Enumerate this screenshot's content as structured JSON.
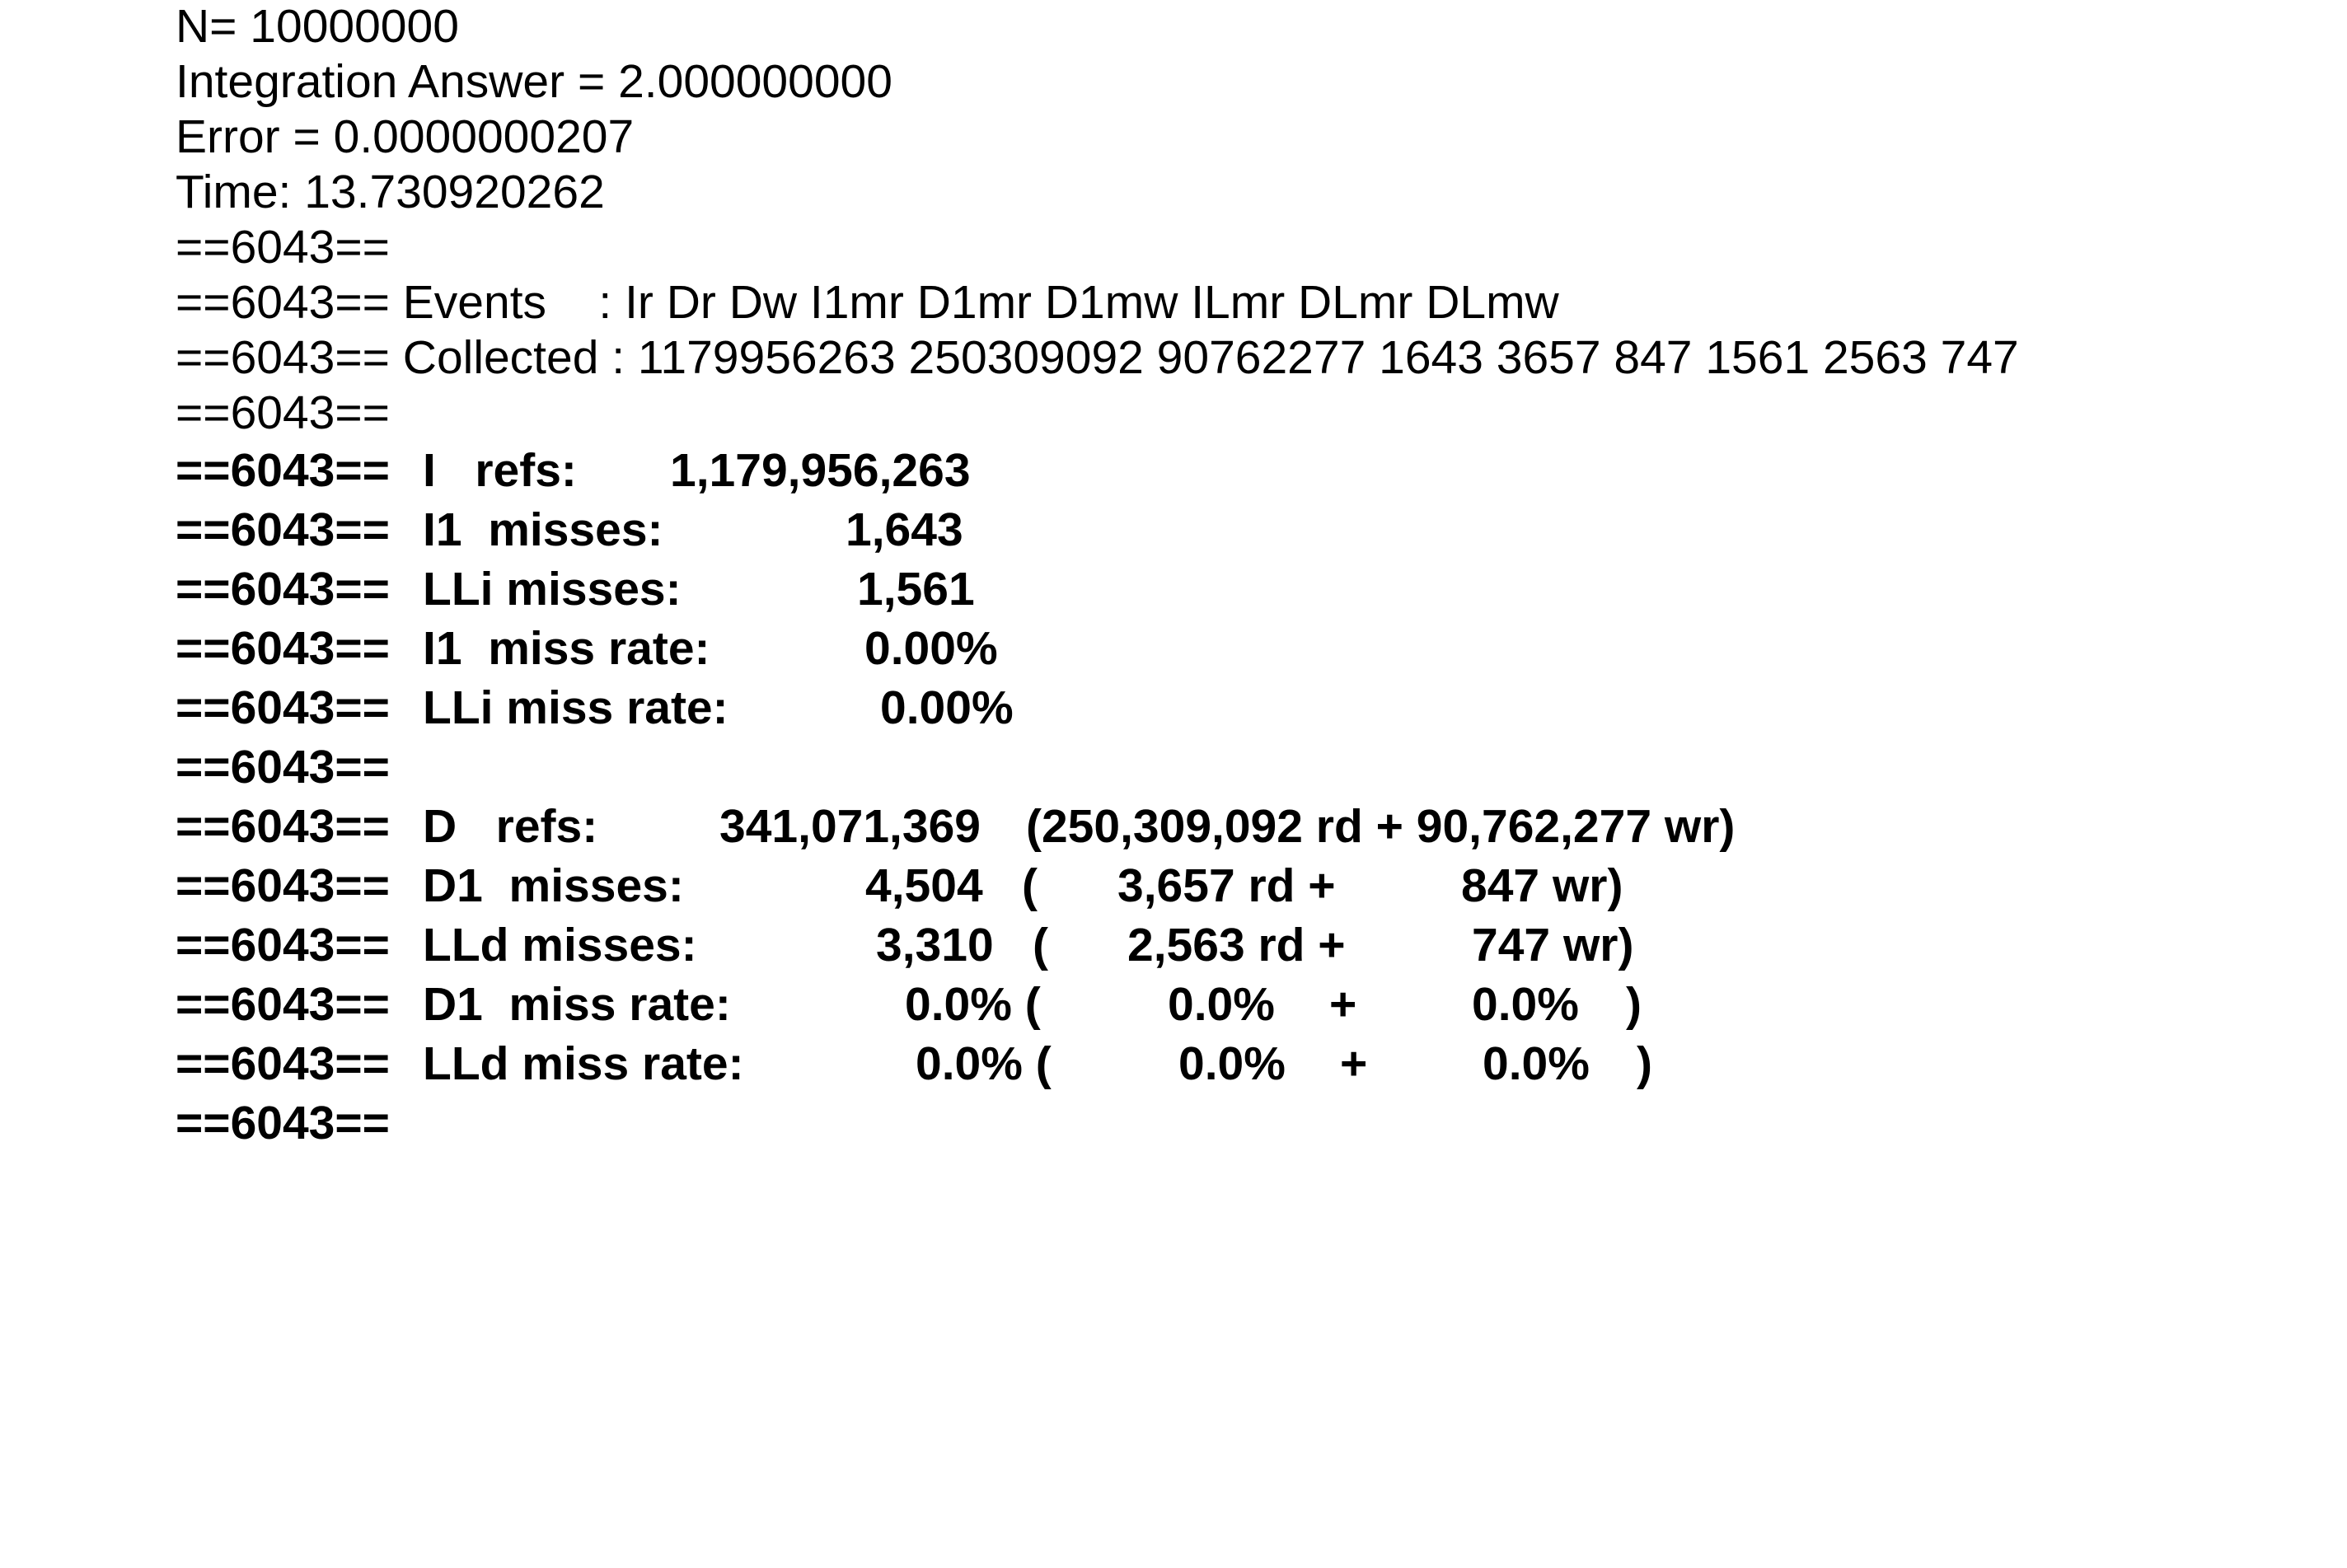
{
  "output": {
    "header": {
      "n_line": "N= 10000000",
      "answer_line": "Integration Answer = 2.000000000",
      "error_line": "Error = 0.0000000207",
      "time_line": "Time: 13.730920262"
    },
    "cachegrind": {
      "pid_prefix": "==6043==",
      "events_line": "==6043== Events    : Ir Dr Dw I1mr D1mr D1mw ILmr DLmr DLmw",
      "collected_line": "==6043== Collected : 1179956263 250309092 90762277 1643 3657 847 1561 2563 747",
      "instr": {
        "i_refs": {
          "label": "I   refs:",
          "value": "1,179,956,263"
        },
        "i1_misses": {
          "label": "I1  misses:",
          "value": "1,643"
        },
        "lli_misses": {
          "label": "LLi misses:",
          "value": "1,561"
        },
        "i1_miss_rate": {
          "label": "I1  miss rate:",
          "value": "0.00%"
        },
        "lli_miss_rate": {
          "label": "LLi miss rate:",
          "value": "0.00%"
        }
      },
      "data": {
        "d_refs": {
          "label": "D   refs:",
          "value": "341,071,369",
          "breakdown": "(250,309,092 rd + 90,762,277 wr)"
        },
        "d1_misses": {
          "label": "D1  misses:",
          "value": "4,504",
          "open": "(",
          "rd": "3,657 rd +",
          "wr": "847 wr)"
        },
        "lld_misses": {
          "label": "LLd misses:",
          "value": "3,310",
          "open": "(",
          "rd": "2,563 rd +",
          "wr": "747 wr)"
        },
        "d1_miss_rate": {
          "label": "D1  miss rate:",
          "value": "0.0% (",
          "rd": "0.0%",
          "plus": "+",
          "wr": "0.0%",
          "close": ")"
        },
        "lld_miss_rate": {
          "label": "LLd miss rate:",
          "value": "0.0% (",
          "rd": "0.0%",
          "plus": "+",
          "wr": "0.0%",
          "close": ")"
        }
      }
    }
  }
}
